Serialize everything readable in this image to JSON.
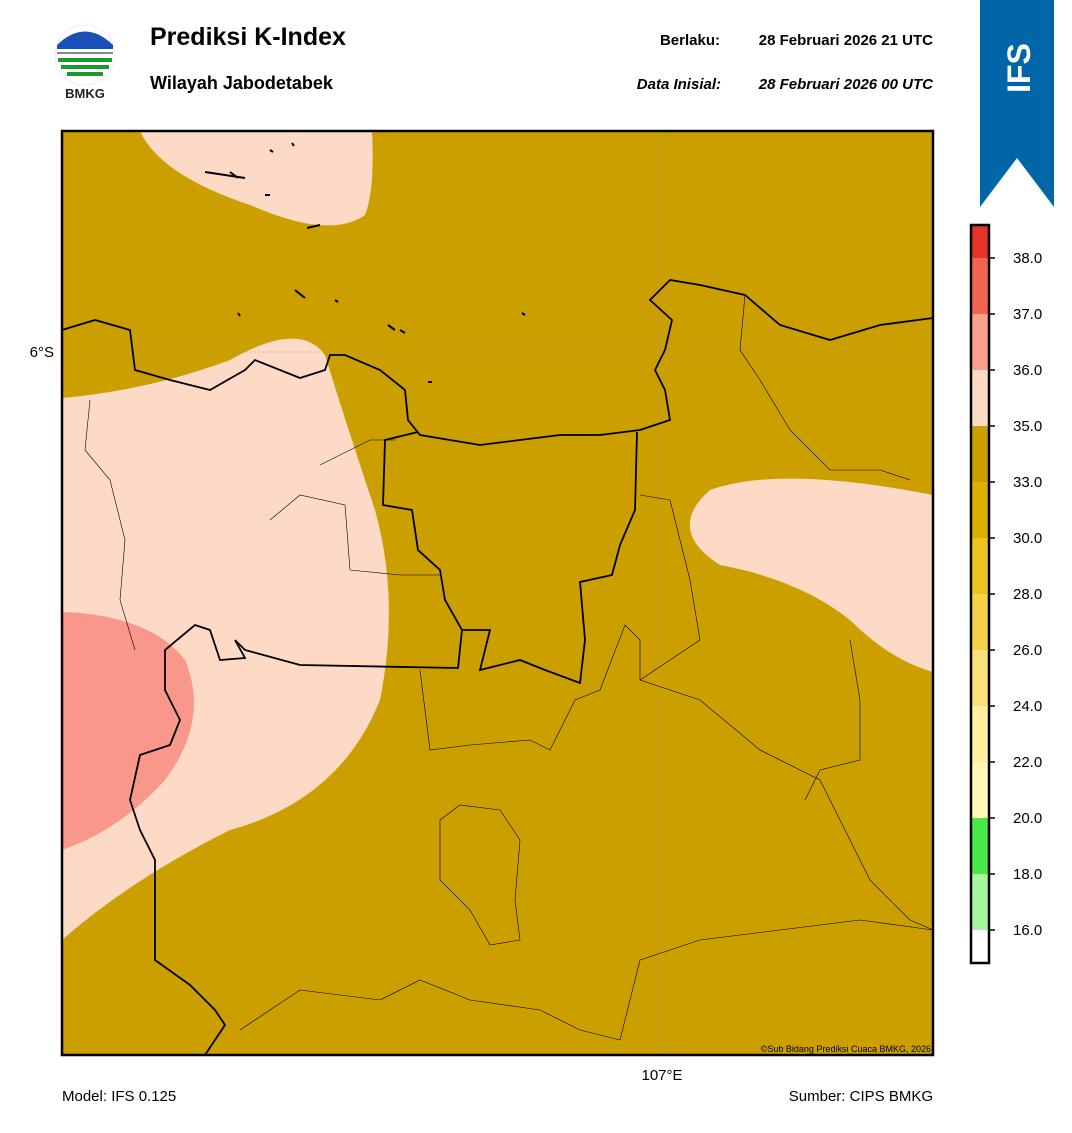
{
  "header": {
    "logo_text": "BMKG",
    "title": "Prediksi K-Index",
    "subtitle": "Wilayah Jabodetabek",
    "valid_label": "Berlaku:",
    "valid_time": "28 Februari 2026 21 UTC",
    "init_label": "Data Inisial:",
    "init_time": "28 Februari 2026 00 UTC",
    "badge": "IFS"
  },
  "map": {
    "lat_label": "6°S",
    "lon_label": "107°E",
    "credit": "©Sub Bidang Prediksi Cuaca BMKG, 2026"
  },
  "colorbar": {
    "ticks": [
      {
        "value": 16,
        "label": "16.0"
      },
      {
        "value": 18,
        "label": "18.0"
      },
      {
        "value": 20,
        "label": "20.0"
      },
      {
        "value": 22,
        "label": "22.0"
      },
      {
        "value": 24,
        "label": "24.0"
      },
      {
        "value": 26,
        "label": "26.0"
      },
      {
        "value": 28,
        "label": "28.0"
      },
      {
        "value": 30,
        "label": "30.0"
      },
      {
        "value": 33,
        "label": "33.0"
      },
      {
        "value": 35,
        "label": "35.0"
      },
      {
        "value": 36,
        "label": "36.0"
      },
      {
        "value": 37,
        "label": "37.0"
      },
      {
        "value": 38,
        "label": "38.0"
      }
    ],
    "colors": [
      "#ffffff",
      "#a8f5a0",
      "#48e848",
      "#fff8b8",
      "#fff0a0",
      "#fae078",
      "#f5d248",
      "#ecc520",
      "#dcb000",
      "#cc9f00",
      "#fddac6",
      "#f8a08c",
      "#f06450",
      "#e63428"
    ]
  },
  "footer": {
    "model": "Model: IFS 0.125",
    "source": "Sumber: CIPS BMKG"
  }
}
